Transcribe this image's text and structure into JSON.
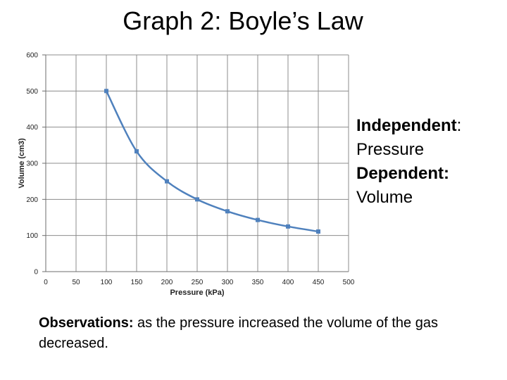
{
  "title": "Graph 2: Boyle’s Law",
  "chart_data": {
    "type": "line",
    "xlabel": "Pressure (kPa)",
    "ylabel": "Volume (cm3)",
    "xlim": [
      0,
      500
    ],
    "ylim": [
      0,
      600
    ],
    "x_ticks": [
      0,
      50,
      100,
      150,
      200,
      250,
      300,
      350,
      400,
      450,
      500
    ],
    "y_ticks": [
      0,
      100,
      200,
      300,
      400,
      500,
      600
    ],
    "grid": true,
    "series": [
      {
        "color": "#4f81bd",
        "x": [
          100,
          150,
          200,
          250,
          300,
          350,
          400,
          450
        ],
        "y": [
          500,
          333,
          250,
          200,
          167,
          143,
          125,
          111
        ]
      }
    ]
  },
  "variables": {
    "independent_label": "Independent",
    "independent_colon": ":",
    "independent_value": "Pressure",
    "dependent_label": "Dependent:",
    "dependent_value": "Volume"
  },
  "observations": {
    "label": "Observations:",
    "text": "as the pressure increased the volume of the gas decreased."
  }
}
